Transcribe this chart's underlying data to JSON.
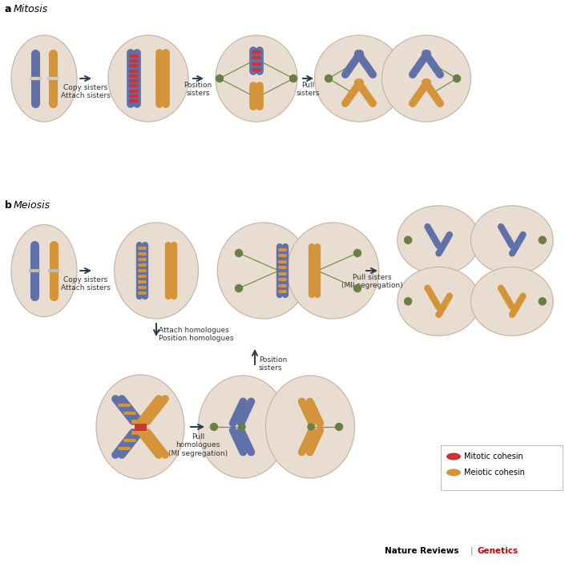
{
  "cell_fill": "#e8ddd0",
  "cell_edge": "#c5b8a8",
  "blue": "#6070a8",
  "orange": "#d4943a",
  "red_coh": "#cc3333",
  "ora_coh": "#d4943a",
  "spin_col": "#7a8e50",
  "spin_node": "#6a7e45",
  "arrow_col": "#2a3a4a",
  "text_col": "#333333",
  "legend_mitotic": "Mitotic cohesin",
  "legend_meiotic": "Meiotic cohesin",
  "footer_left": "Nature Reviews",
  "footer_right": "Genetics"
}
